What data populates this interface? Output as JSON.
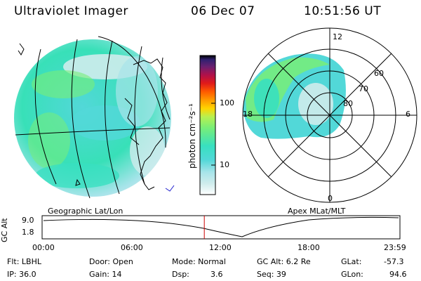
{
  "header": {
    "title": "Ultraviolet Imager",
    "date": "06 Dec 07",
    "time": "10:51:56 UT"
  },
  "colors": {
    "scale": [
      "#ffffff",
      "#cfecec",
      "#a8e4ea",
      "#52d8d8",
      "#38e0c0",
      "#78ee78",
      "#b8f050",
      "#ffd400",
      "#ff9a00",
      "#ff5a00",
      "#e01a1a",
      "#b0104a",
      "#6a2070",
      "#302070",
      "#000000"
    ],
    "marker": "#cc0000",
    "coast": "#1a1acc"
  },
  "colorbar": {
    "unit_label": "photon cm⁻²s⁻¹",
    "ticks": [
      "100",
      "10"
    ]
  },
  "polar": {
    "lat_labels": [
      "80",
      "70",
      "60"
    ],
    "mlt_labels": {
      "top": "12",
      "left": "18",
      "right": "6",
      "bottom": "0"
    }
  },
  "map_labels": {
    "left": "Geographic Lat/Lon",
    "right": "Apex MLat/MLT"
  },
  "altitude_plot": {
    "ylabel": "GC Alt",
    "yticks": [
      "9.0",
      "1.8"
    ],
    "xticks": [
      "00:00",
      "06:00",
      "12:00",
      "18:00",
      "23:59"
    ],
    "current_time_hours": 10.87
  },
  "info": {
    "filter": "Flt: LBHL",
    "ip": "IP: 36.0",
    "door": "Door: Open",
    "gain": "Gain: 14",
    "mode": "Mode: Normal",
    "dsp_label": "Dsp:",
    "dsp_value": "3.6",
    "gc_alt": "GC Alt: 6.2 Re",
    "seq": "Seq: 39",
    "glat_label": "GLat:",
    "glat_value": "-57.3",
    "glon_label": "GLon:",
    "glon_value": "94.6"
  }
}
